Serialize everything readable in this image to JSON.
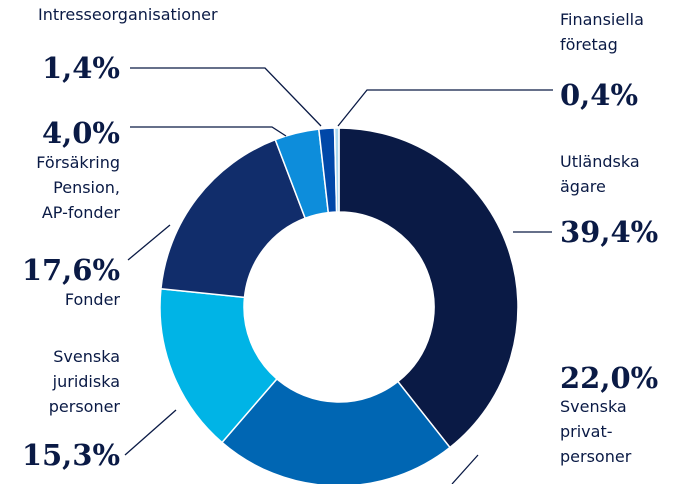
{
  "chart_data": {
    "type": "donut",
    "categories": [
      "Utländska\nägare",
      "Svenska\nprivat-\npersoner",
      "Svenska\njuridiska\npersoner",
      "Fonder",
      "Försäkring\nPension,\nAP-fonder",
      "Intresseorganisationer",
      "Finansiella\nföretag"
    ],
    "values": [
      39.4,
      22.0,
      15.3,
      17.6,
      4.0,
      1.4,
      0.4
    ],
    "value_labels": [
      "39,4%",
      "22,0%",
      "15,3%",
      "17,6%",
      "4,0%",
      "1,4%",
      "0,4%"
    ],
    "colors": [
      "#0a1a45",
      "#0066b3",
      "#00b4e6",
      "#112d6b",
      "#0d8ddb",
      "#0047a8",
      "#a9d8f0"
    ]
  }
}
